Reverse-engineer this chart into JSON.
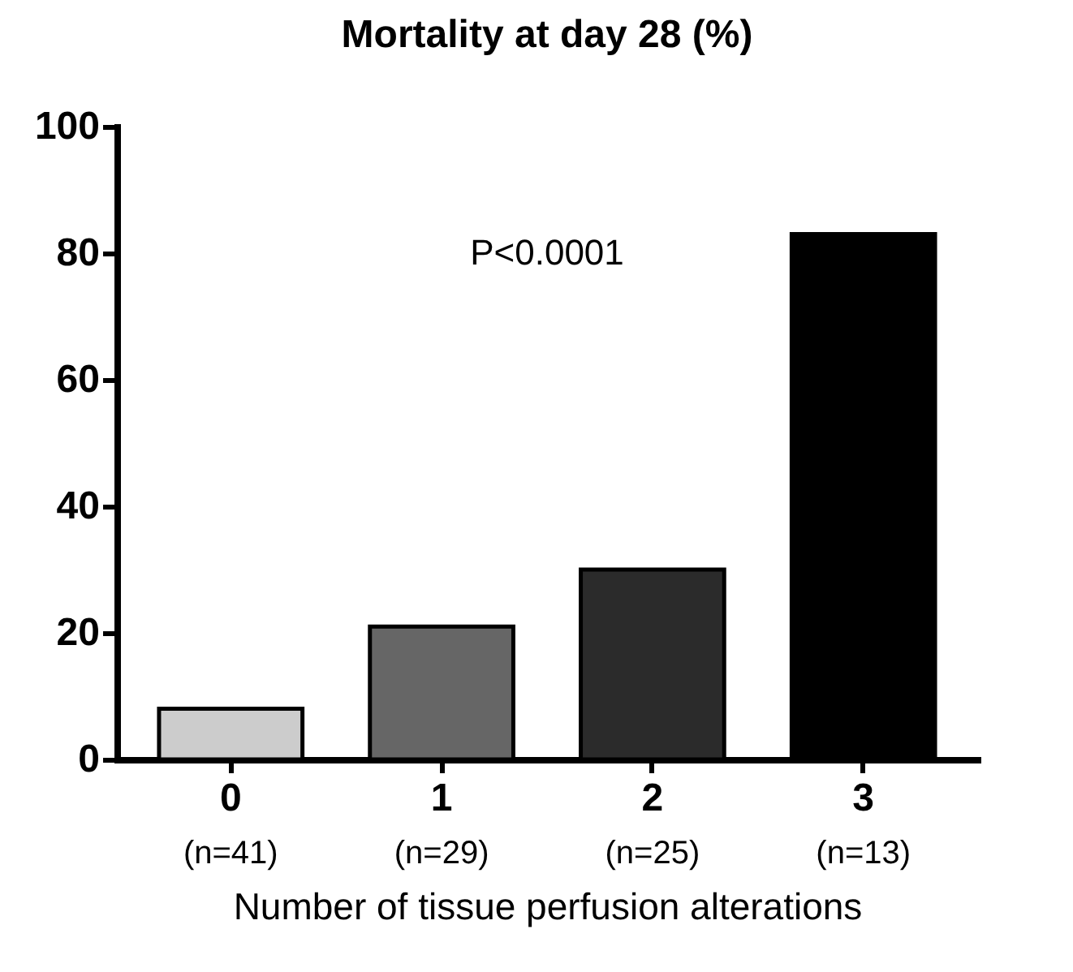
{
  "chart_data": {
    "type": "bar",
    "title": "Mortality at day 28 (%)",
    "xlabel": "Number of tissue perfusion alterations",
    "categories": [
      "0\n(n=41)",
      "1\n(n=29)",
      "2\n(n=25)",
      "3\n(n=13)"
    ],
    "values": [
      8,
      21,
      30,
      83
    ],
    "colors": [
      "#cccccc",
      "#666666",
      "#2b2b2b",
      "#000000"
    ],
    "ylim": [
      0,
      100
    ],
    "yticks": [
      0,
      20,
      40,
      60,
      80,
      100
    ],
    "grid": false,
    "annotations": [
      "P<0.0001"
    ]
  }
}
